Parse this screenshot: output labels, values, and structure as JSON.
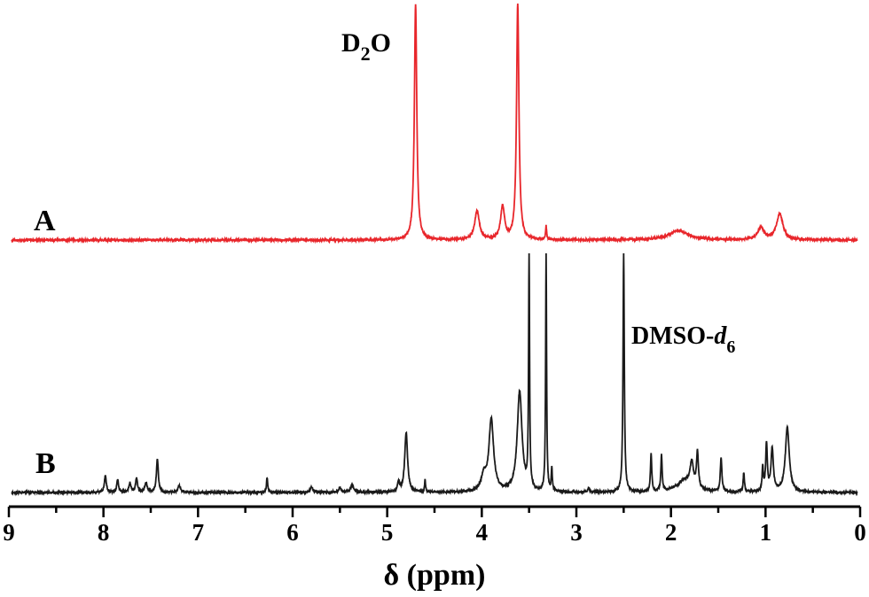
{
  "chart_data": {
    "type": "line",
    "xlabel": "δ (ppm)",
    "x_reversed": true,
    "xlim": [
      9,
      0
    ],
    "x_ticks": [
      "9",
      "8",
      "7",
      "6",
      "5",
      "4",
      "3",
      "2",
      "1",
      "0"
    ],
    "series": [
      {
        "name": "A",
        "color": "#e8262b",
        "peaks": [
          {
            "ppm": 4.7,
            "height": 1.0,
            "width": 0.015
          },
          {
            "ppm": 4.05,
            "height": 0.12,
            "width": 0.03
          },
          {
            "ppm": 3.78,
            "height": 0.14,
            "width": 0.025
          },
          {
            "ppm": 3.62,
            "height": 1.0,
            "width": 0.015
          },
          {
            "ppm": 3.32,
            "height": 0.06,
            "width": 0.006
          },
          {
            "ppm": 1.92,
            "height": 0.04,
            "width": 0.12
          },
          {
            "ppm": 1.05,
            "height": 0.05,
            "width": 0.04
          },
          {
            "ppm": 0.85,
            "height": 0.11,
            "width": 0.04
          }
        ]
      },
      {
        "name": "B",
        "color": "#1a1a1a",
        "peaks": [
          {
            "ppm": 7.98,
            "height": 0.07,
            "width": 0.012
          },
          {
            "ppm": 7.85,
            "height": 0.05,
            "width": 0.012
          },
          {
            "ppm": 7.72,
            "height": 0.04,
            "width": 0.012
          },
          {
            "ppm": 7.65,
            "height": 0.06,
            "width": 0.012
          },
          {
            "ppm": 7.55,
            "height": 0.04,
            "width": 0.015
          },
          {
            "ppm": 7.43,
            "height": 0.14,
            "width": 0.012
          },
          {
            "ppm": 7.2,
            "height": 0.03,
            "width": 0.015
          },
          {
            "ppm": 6.27,
            "height": 0.06,
            "width": 0.008
          },
          {
            "ppm": 5.8,
            "height": 0.02,
            "width": 0.02
          },
          {
            "ppm": 5.5,
            "height": 0.02,
            "width": 0.015
          },
          {
            "ppm": 5.37,
            "height": 0.03,
            "width": 0.02
          },
          {
            "ppm": 4.88,
            "height": 0.04,
            "width": 0.012
          },
          {
            "ppm": 4.8,
            "height": 0.25,
            "width": 0.018
          },
          {
            "ppm": 4.6,
            "height": 0.05,
            "width": 0.006
          },
          {
            "ppm": 3.98,
            "height": 0.06,
            "width": 0.03
          },
          {
            "ppm": 3.9,
            "height": 0.3,
            "width": 0.03
          },
          {
            "ppm": 3.6,
            "height": 0.42,
            "width": 0.03
          },
          {
            "ppm": 3.5,
            "height": 1.0,
            "width": 0.006
          },
          {
            "ppm": 3.32,
            "height": 1.0,
            "width": 0.006
          },
          {
            "ppm": 3.26,
            "height": 0.1,
            "width": 0.006
          },
          {
            "ppm": 2.87,
            "height": 0.02,
            "width": 0.008
          },
          {
            "ppm": 2.5,
            "height": 1.0,
            "width": 0.008
          },
          {
            "ppm": 2.21,
            "height": 0.16,
            "width": 0.008
          },
          {
            "ppm": 2.1,
            "height": 0.15,
            "width": 0.008
          },
          {
            "ppm": 1.85,
            "height": 0.05,
            "width": 0.1
          },
          {
            "ppm": 1.78,
            "height": 0.1,
            "width": 0.02
          },
          {
            "ppm": 1.72,
            "height": 0.15,
            "width": 0.012
          },
          {
            "ppm": 1.47,
            "height": 0.14,
            "width": 0.01
          },
          {
            "ppm": 1.23,
            "height": 0.08,
            "width": 0.008
          },
          {
            "ppm": 1.03,
            "height": 0.1,
            "width": 0.008
          },
          {
            "ppm": 0.99,
            "height": 0.2,
            "width": 0.01
          },
          {
            "ppm": 0.93,
            "height": 0.18,
            "width": 0.015
          },
          {
            "ppm": 0.77,
            "height": 0.27,
            "width": 0.025
          }
        ]
      }
    ],
    "annotations": [
      {
        "text": "D",
        "sub": "2",
        "after": "O",
        "series": "A"
      },
      {
        "text": "DMSO-",
        "ital": "d",
        "sub": "6",
        "series": "B"
      }
    ]
  }
}
